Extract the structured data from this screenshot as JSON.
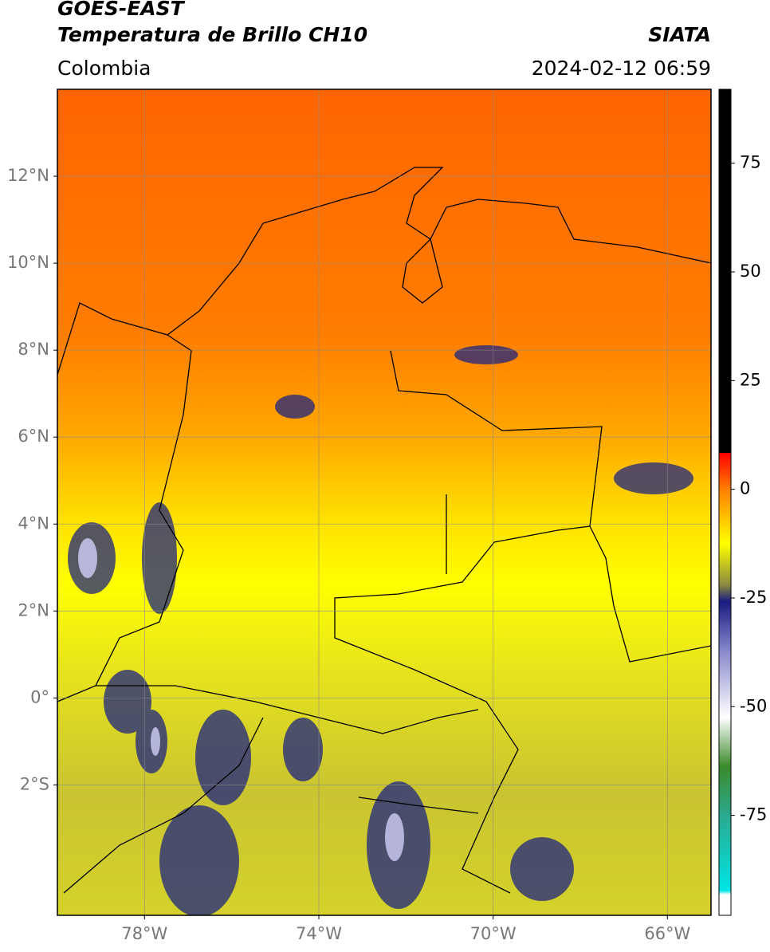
{
  "header": {
    "satellite": "GOES-EAST",
    "product": "Temperatura de Brillo CH10",
    "source": "SIATA",
    "region": "Colombia",
    "timestamp": "2024-02-12 06:59"
  },
  "map": {
    "xlim": [
      -80,
      -65
    ],
    "ylim": [
      -5,
      14
    ],
    "xticks": [
      {
        "value": -78,
        "label": "78°W"
      },
      {
        "value": -74,
        "label": "74°W"
      },
      {
        "value": -70,
        "label": "70°W"
      },
      {
        "value": -66,
        "label": "66°W"
      }
    ],
    "yticks": [
      {
        "value": 12,
        "label": "12°N"
      },
      {
        "value": 10,
        "label": "10°N"
      },
      {
        "value": 8,
        "label": "8°N"
      },
      {
        "value": 6,
        "label": "6°N"
      },
      {
        "value": 4,
        "label": "4°N"
      },
      {
        "value": 2,
        "label": "2°N"
      },
      {
        "value": 0,
        "label": "0°"
      },
      {
        "value": -2,
        "label": "2°S"
      }
    ]
  },
  "colorbar": {
    "lim": [
      -98,
      92
    ],
    "ticks": [
      75,
      50,
      25,
      0,
      -25,
      -50,
      -75
    ]
  }
}
